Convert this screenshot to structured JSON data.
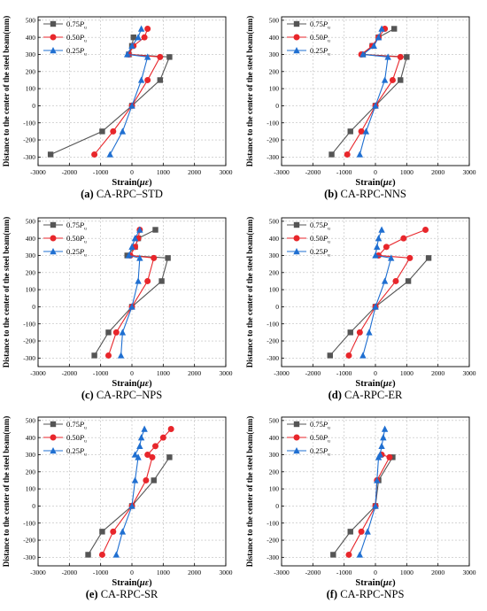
{
  "figure": {
    "legend_labels": [
      "0.75Pu",
      "0.50Pu",
      "0.25Pu"
    ],
    "colors": {
      "s075": "#555555",
      "s050": "#e8262b",
      "s025": "#1f6fd1",
      "grid": "#bdbdbd",
      "axis": "#000000"
    }
  },
  "chart_data": [
    {
      "id": "a",
      "caption_letter": "(a)",
      "caption_text": "CA-RPC–STD",
      "type": "line",
      "xlabel": "Strain(με)",
      "ylabel": "Distance to the center of the steel beam(mm)",
      "xlim": [
        -3000,
        3000
      ],
      "ylim": [
        -350,
        520
      ],
      "xticks": [
        -3000,
        -2000,
        -1000,
        0,
        1000,
        2000,
        3000
      ],
      "yticks": [
        -300,
        -200,
        -100,
        0,
        100,
        200,
        300,
        400,
        500
      ],
      "legend_position": "top-left",
      "grid": true,
      "series": [
        {
          "name": "0.75Pu",
          "marker": "square",
          "x": [
            -2600,
            -950,
            0,
            900,
            1200,
            -100,
            0,
            50
          ],
          "y": [
            -285,
            -150,
            0,
            150,
            285,
            300,
            350,
            400
          ]
        },
        {
          "name": "0.50Pu",
          "marker": "circle",
          "x": [
            -1200,
            -600,
            0,
            500,
            900,
            -100,
            50,
            400,
            500
          ],
          "y": [
            -285,
            -150,
            0,
            150,
            285,
            300,
            350,
            400,
            450
          ]
        },
        {
          "name": "0.25Pu",
          "marker": "triangle",
          "x": [
            -700,
            -300,
            0,
            300,
            500,
            -150,
            0,
            200,
            300
          ],
          "y": [
            -285,
            -150,
            0,
            150,
            285,
            300,
            350,
            400,
            450
          ]
        }
      ]
    },
    {
      "id": "b",
      "caption_letter": "(b)",
      "caption_text": "CA-RPC-NNS",
      "type": "line",
      "xlabel": "Strain(με)",
      "ylabel": "Distance to the center of the steel beam(mm)",
      "xlim": [
        -3000,
        3000
      ],
      "ylim": [
        -350,
        520
      ],
      "xticks": [
        -3000,
        -2000,
        -1000,
        0,
        1000,
        2000,
        3000
      ],
      "yticks": [
        -300,
        -200,
        -100,
        0,
        100,
        200,
        300,
        400,
        500
      ],
      "legend_position": "top-left",
      "grid": true,
      "series": [
        {
          "name": "0.75Pu",
          "marker": "square",
          "x": [
            -1400,
            -800,
            0,
            800,
            1000,
            -400,
            -100,
            100,
            600
          ],
          "y": [
            -285,
            -150,
            0,
            150,
            285,
            300,
            350,
            400,
            450
          ]
        },
        {
          "name": "0.50Pu",
          "marker": "circle",
          "x": [
            -900,
            -450,
            0,
            550,
            800,
            -450,
            -100,
            100,
            300
          ],
          "y": [
            -285,
            -150,
            0,
            150,
            285,
            300,
            350,
            400,
            450
          ]
        },
        {
          "name": "0.25Pu",
          "marker": "triangle",
          "x": [
            -500,
            -300,
            0,
            300,
            400,
            -400,
            -50,
            100,
            200
          ],
          "y": [
            -285,
            -150,
            0,
            150,
            285,
            300,
            350,
            400,
            450
          ]
        }
      ]
    },
    {
      "id": "c",
      "caption_letter": "(c)",
      "caption_text": "CA-RPC–NPS",
      "type": "line",
      "xlabel": "Strain(με)",
      "ylabel": "Distance to the center of the steel beam(mm)",
      "xlim": [
        -3000,
        3000
      ],
      "ylim": [
        -350,
        520
      ],
      "xticks": [
        -3000,
        -2000,
        -1000,
        0,
        1000,
        2000,
        3000
      ],
      "yticks": [
        -300,
        -200,
        -100,
        0,
        100,
        200,
        300,
        400,
        500
      ],
      "legend_position": "top-left",
      "grid": true,
      "series": [
        {
          "name": "0.75Pu",
          "marker": "square",
          "x": [
            -1200,
            -750,
            0,
            950,
            1150,
            -150,
            100,
            200,
            750
          ],
          "y": [
            -285,
            -150,
            0,
            150,
            285,
            300,
            350,
            400,
            450
          ]
        },
        {
          "name": "0.50Pu",
          "marker": "circle",
          "x": [
            -750,
            -500,
            0,
            500,
            700,
            -50,
            100,
            200,
            250
          ],
          "y": [
            -285,
            -150,
            0,
            150,
            285,
            300,
            350,
            400,
            450
          ]
        },
        {
          "name": "0.25Pu",
          "marker": "triangle",
          "x": [
            -350,
            -300,
            0,
            200,
            250,
            -100,
            0,
            100,
            250
          ],
          "y": [
            -285,
            -150,
            0,
            150,
            285,
            300,
            350,
            400,
            450
          ]
        }
      ]
    },
    {
      "id": "d",
      "caption_letter": "(d)",
      "caption_text": "CA-RPC-ER",
      "type": "line",
      "xlabel": "Strain(με)",
      "ylabel": "Distance to the center of the steel beam(mm)",
      "xlim": [
        -3000,
        3000
      ],
      "ylim": [
        -350,
        520
      ],
      "xticks": [
        -3000,
        -2000,
        -1000,
        0,
        1000,
        2000,
        3000
      ],
      "yticks": [
        -300,
        -200,
        -100,
        0,
        100,
        200,
        300,
        400,
        500
      ],
      "legend_position": "top-left",
      "grid": true,
      "series": [
        {
          "name": "0.75Pu",
          "marker": "square",
          "x": [
            -1450,
            -800,
            0,
            1050,
            1700
          ],
          "y": [
            -285,
            -150,
            0,
            150,
            285
          ]
        },
        {
          "name": "0.50Pu",
          "marker": "circle",
          "x": [
            -850,
            -500,
            0,
            650,
            1100,
            100,
            350,
            900,
            1600
          ],
          "y": [
            -285,
            -150,
            0,
            150,
            285,
            300,
            350,
            400,
            450
          ]
        },
        {
          "name": "0.25Pu",
          "marker": "triangle",
          "x": [
            -400,
            -200,
            0,
            300,
            500,
            0,
            50,
            100,
            200
          ],
          "y": [
            -285,
            -150,
            0,
            150,
            285,
            300,
            350,
            400,
            450
          ]
        }
      ]
    },
    {
      "id": "e",
      "caption_letter": "(e)",
      "caption_text": "CA-RPC-SR",
      "type": "line",
      "xlabel": "Strain(με)",
      "ylabel": "Distance to the center of the steel beam(mm)",
      "xlim": [
        -3000,
        3000
      ],
      "ylim": [
        -350,
        520
      ],
      "xticks": [
        -3000,
        -2000,
        -1000,
        0,
        1000,
        2000,
        3000
      ],
      "yticks": [
        -300,
        -200,
        -100,
        0,
        100,
        200,
        300,
        400,
        500
      ],
      "legend_position": "top-left",
      "grid": true,
      "series": [
        {
          "name": "0.75Pu",
          "marker": "square",
          "x": [
            -1400,
            -950,
            0,
            700,
            1200
          ],
          "y": [
            -285,
            -150,
            0,
            150,
            285
          ]
        },
        {
          "name": "0.50Pu",
          "marker": "circle",
          "x": [
            -950,
            -600,
            0,
            450,
            650,
            500,
            750,
            1000,
            1250
          ],
          "y": [
            -285,
            -150,
            0,
            150,
            285,
            300,
            350,
            400,
            450
          ]
        },
        {
          "name": "0.25Pu",
          "marker": "triangle",
          "x": [
            -500,
            -300,
            0,
            100,
            200,
            100,
            250,
            300,
            400
          ],
          "y": [
            -285,
            -150,
            0,
            150,
            285,
            300,
            350,
            400,
            450
          ]
        }
      ]
    },
    {
      "id": "f",
      "caption_letter": "(f)",
      "caption_text": "CA-RPC-NPS",
      "type": "line",
      "xlabel": "Strain(με)",
      "ylabel": "Distance to the center of the steel beam(mm)",
      "xlim": [
        -3000,
        3000
      ],
      "ylim": [
        -350,
        520
      ],
      "xticks": [
        -3000,
        -2000,
        -1000,
        0,
        1000,
        2000,
        3000
      ],
      "yticks": [
        -300,
        -200,
        -100,
        0,
        100,
        200,
        300,
        400,
        500
      ],
      "legend_position": "top-left",
      "grid": true,
      "series": [
        {
          "name": "0.75Pu",
          "marker": "square",
          "x": [
            -1350,
            -800,
            0,
            100,
            550
          ],
          "y": [
            -285,
            -150,
            0,
            150,
            285
          ]
        },
        {
          "name": "0.50Pu",
          "marker": "circle",
          "x": [
            -850,
            -450,
            0,
            50,
            450,
            200
          ],
          "y": [
            -285,
            -150,
            0,
            150,
            285,
            300
          ]
        },
        {
          "name": "0.25Pu",
          "marker": "triangle",
          "x": [
            -500,
            -250,
            0,
            50,
            100,
            150,
            200,
            250,
            300
          ],
          "y": [
            -285,
            -150,
            0,
            150,
            285,
            300,
            350,
            400,
            450
          ]
        }
      ]
    }
  ]
}
